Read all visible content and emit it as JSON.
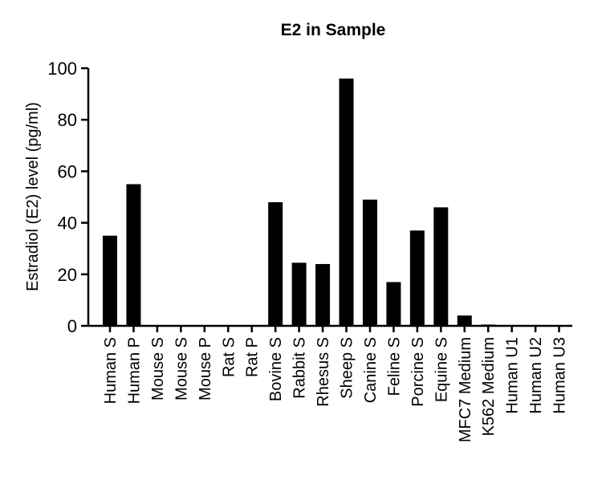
{
  "chart_data": {
    "type": "bar",
    "title": "E2 in Sample",
    "ylabel": "Estradiol (E2) level (pg/ml)",
    "xlabel": "",
    "ylim": [
      0,
      100
    ],
    "yticks": [
      "0",
      "20",
      "40",
      "60",
      "80",
      "100"
    ],
    "grid": false,
    "bar_color": "#000000",
    "categories": [
      "Human S",
      "Human P",
      "Mouse S",
      "Mouse S",
      "Mouse P",
      "Rat S",
      "Rat P",
      "Bovine S",
      "Rabbit S",
      "Rhesus S",
      "Sheep S",
      "Canine S",
      "Feline S",
      "Porcine S",
      "Equine S",
      "MFC7 Medium",
      "K562 Medium",
      "Human U1",
      "Human U2",
      "Human U3"
    ],
    "values": [
      35,
      55,
      0,
      0,
      0,
      0,
      0,
      48,
      24.5,
      24,
      96,
      49,
      17,
      37,
      46,
      4,
      0.5,
      0,
      0,
      0
    ]
  }
}
